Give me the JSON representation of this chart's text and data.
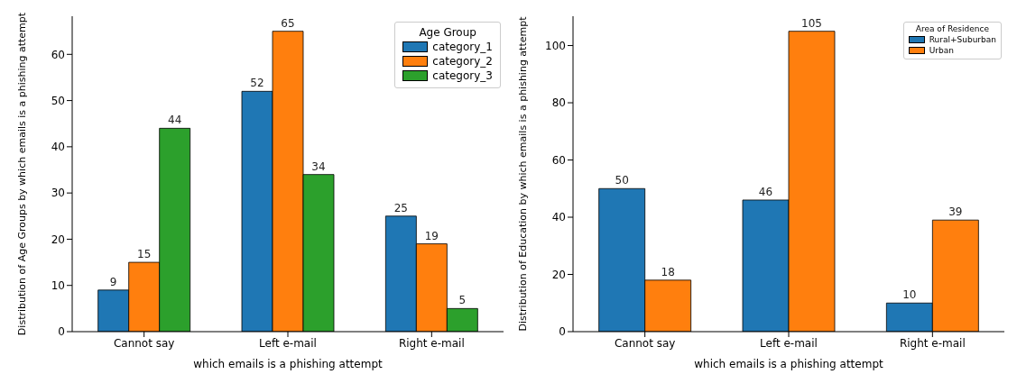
{
  "chart_data": [
    {
      "type": "bar",
      "xlabel": "which emails is a phishing attempt",
      "ylabel": "Distribution of Age Groups by which emails is a phishing attempt",
      "legend_title": "Age Group",
      "categories": [
        "Cannot say",
        "Left e-mail",
        "Right e-mail"
      ],
      "series": [
        {
          "name": "category_1",
          "color": "#1f77b4",
          "values": [
            9,
            52,
            25
          ]
        },
        {
          "name": "category_2",
          "color": "#ff7f0e",
          "values": [
            15,
            65,
            19
          ]
        },
        {
          "name": "category_3",
          "color": "#2ca02c",
          "values": [
            44,
            34,
            5
          ]
        }
      ],
      "ylim": [
        0,
        68.25
      ],
      "yticks": [
        0,
        10,
        20,
        30,
        40,
        50,
        60
      ],
      "data_labels": true,
      "legend": "top right",
      "grid": false
    },
    {
      "type": "bar",
      "xlabel": "which emails is a phishing attempt",
      "ylabel": "Distribution of Education by which emails is a phishing attempt",
      "legend_title": "Area of Residence",
      "categories": [
        "Cannot say",
        "Left e-mail",
        "Right e-mail"
      ],
      "series": [
        {
          "name": "Rural+Suburban",
          "color": "#1f77b4",
          "values": [
            50,
            46,
            10
          ]
        },
        {
          "name": "Urban",
          "color": "#ff7f0e",
          "values": [
            18,
            105,
            39
          ]
        }
      ],
      "ylim": [
        0,
        110.25
      ],
      "yticks": [
        0,
        20,
        40,
        60,
        80,
        100
      ],
      "data_labels": true,
      "legend": "top right",
      "grid": false
    }
  ]
}
